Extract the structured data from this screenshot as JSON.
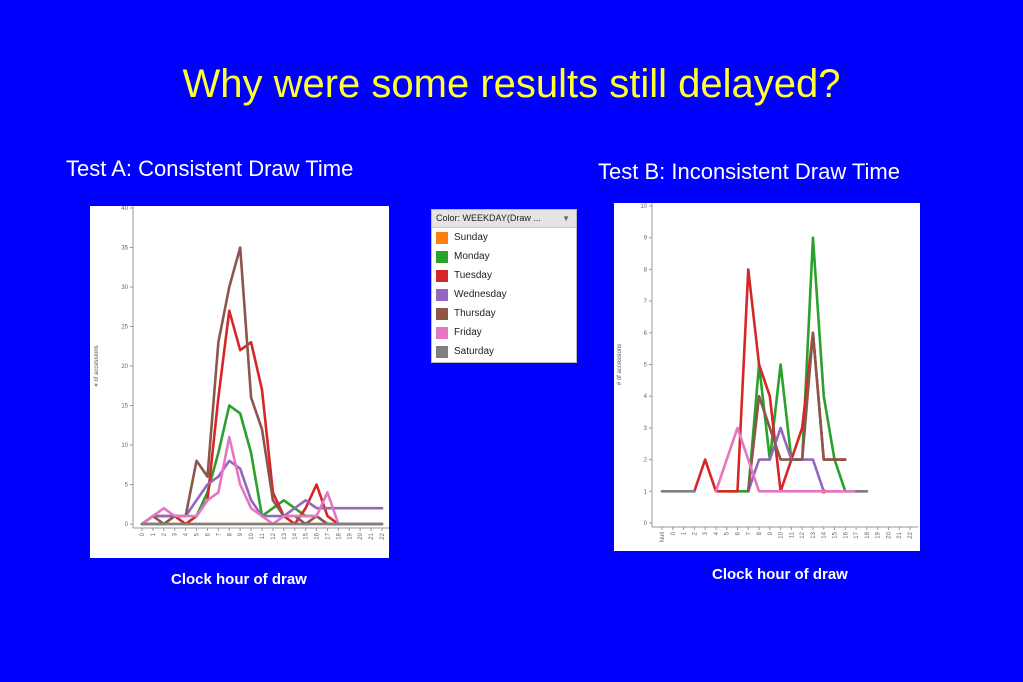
{
  "slide": {
    "title": "Why were some results still delayed?"
  },
  "chartA": {
    "heading": "Test A: Consistent Draw Time",
    "caption": "Clock hour of draw"
  },
  "chartB": {
    "heading": "Test B: Inconsistent Draw Time",
    "caption": "Clock hour of draw"
  },
  "legend": {
    "title": "Color: WEEKDAY(Draw ...",
    "items": [
      {
        "label": "Sunday",
        "color": "#FF7F0E"
      },
      {
        "label": "Monday",
        "color": "#2CA02C"
      },
      {
        "label": "Tuesday",
        "color": "#D62728"
      },
      {
        "label": "Wednesday",
        "color": "#9467BD"
      },
      {
        "label": "Thursday",
        "color": "#8C564B"
      },
      {
        "label": "Friday",
        "color": "#E377C2"
      },
      {
        "label": "Saturday",
        "color": "#7F7F7F"
      }
    ]
  },
  "chart_data": [
    {
      "type": "line",
      "title": "Test A: Consistent Draw Time",
      "xlabel": "Clock hour of draw",
      "ylabel": "# of accessions",
      "x": [
        0,
        1,
        2,
        3,
        4,
        5,
        6,
        7,
        8,
        9,
        10,
        11,
        12,
        13,
        14,
        15,
        16,
        17,
        18,
        19,
        20,
        21,
        22
      ],
      "x_tick_labels": [
        "0",
        "1",
        "2",
        "3",
        "4",
        "5",
        "6",
        "7",
        "8",
        "9",
        "10",
        "11",
        "12",
        "13",
        "14",
        "15",
        "16",
        "17",
        "18",
        "19",
        "20",
        "21",
        "22"
      ],
      "ylim": [
        0,
        40
      ],
      "y_ticks": [
        0,
        5,
        10,
        15,
        20,
        25,
        30,
        35,
        40
      ],
      "series": [
        {
          "name": "Sunday",
          "color": "#FF7F0E",
          "values": [
            0,
            0,
            0,
            0,
            0,
            0,
            0,
            0,
            0,
            0,
            0,
            0,
            0,
            0,
            0,
            0,
            0,
            0,
            0,
            0,
            0,
            0,
            0
          ]
        },
        {
          "name": "Monday",
          "color": "#2CA02C",
          "values": [
            0,
            0,
            0,
            1,
            0,
            1,
            4,
            9,
            15,
            14,
            9,
            1,
            2,
            3,
            2,
            1,
            1,
            0,
            0,
            0,
            0,
            0,
            0
          ]
        },
        {
          "name": "Tuesday",
          "color": "#D62728",
          "values": [
            0,
            1,
            1,
            1,
            0,
            1,
            3,
            16,
            27,
            22,
            23,
            17,
            4,
            1,
            0,
            2,
            5,
            1,
            0,
            0,
            0,
            0,
            0
          ]
        },
        {
          "name": "Wednesday",
          "color": "#9467BD",
          "values": [
            0,
            1,
            1,
            1,
            1,
            3,
            5,
            6,
            8,
            7,
            3,
            1,
            1,
            1,
            2,
            3,
            2,
            2,
            2,
            2,
            2,
            2,
            2
          ]
        },
        {
          "name": "Thursday",
          "color": "#8C564B",
          "values": [
            0,
            1,
            0,
            1,
            1,
            8,
            6,
            23,
            30,
            35,
            16,
            12,
            3,
            1,
            1,
            0,
            1,
            0,
            0,
            0,
            0,
            0,
            0
          ]
        },
        {
          "name": "Friday",
          "color": "#E377C2",
          "values": [
            0,
            1,
            2,
            1,
            1,
            1,
            3,
            4,
            11,
            5,
            2,
            1,
            0,
            1,
            1,
            1,
            1,
            4,
            0,
            0,
            0,
            0,
            0
          ]
        },
        {
          "name": "Saturday",
          "color": "#7F7F7F",
          "values": [
            0,
            0,
            0,
            0,
            0,
            0,
            0,
            0,
            0,
            0,
            0,
            0,
            0,
            0,
            0,
            0,
            0,
            0,
            0,
            0,
            0,
            0,
            0
          ]
        }
      ]
    },
    {
      "type": "line",
      "title": "Test B: Inconsistent Draw Time",
      "xlabel": "Clock hour of draw",
      "ylabel": "# of accessions",
      "x": [
        "Null",
        "0",
        "1",
        "2",
        "3",
        "4",
        "5",
        "6",
        "7",
        "8",
        "9",
        "10",
        "11",
        "12",
        "13",
        "14",
        "15",
        "16",
        "17",
        "18",
        "19",
        "20",
        "21",
        "22"
      ],
      "x_tick_labels": [
        "Null",
        "0",
        "1",
        "2",
        "3",
        "4",
        "5",
        "6",
        "7",
        "8",
        "9",
        "10",
        "11",
        "12",
        "13",
        "14",
        "15",
        "16",
        "17",
        "18",
        "19",
        "20",
        "21",
        "22"
      ],
      "ylim": [
        0,
        10
      ],
      "y_ticks": [
        0,
        1,
        2,
        3,
        4,
        5,
        6,
        7,
        8,
        9,
        10
      ],
      "series": [
        {
          "name": "Sunday",
          "color": "#FF7F0E",
          "values": [
            null,
            null,
            null,
            null,
            null,
            null,
            null,
            null,
            null,
            null,
            null,
            null,
            null,
            null,
            null,
            1,
            null,
            null,
            null,
            null,
            null,
            null,
            null,
            null
          ]
        },
        {
          "name": "Monday",
          "color": "#2CA02C",
          "values": [
            null,
            null,
            null,
            null,
            null,
            null,
            1,
            1,
            1,
            5,
            2,
            5,
            2,
            2,
            9,
            4,
            2,
            1,
            1,
            null,
            null,
            null,
            null,
            null
          ]
        },
        {
          "name": "Tuesday",
          "color": "#D62728",
          "values": [
            null,
            null,
            null,
            1,
            2,
            1,
            1,
            1,
            8,
            5,
            4,
            1,
            2,
            3,
            6,
            2,
            2,
            2,
            null,
            null,
            null,
            null,
            null,
            null
          ]
        },
        {
          "name": "Wednesday",
          "color": "#9467BD",
          "values": [
            null,
            null,
            null,
            null,
            null,
            null,
            null,
            null,
            1,
            2,
            2,
            3,
            2,
            2,
            2,
            1,
            1,
            1,
            null,
            null,
            null,
            null,
            null,
            null
          ]
        },
        {
          "name": "Thursday",
          "color": "#8C564B",
          "values": [
            null,
            null,
            null,
            null,
            null,
            null,
            null,
            null,
            1,
            4,
            3,
            2,
            2,
            2,
            6,
            2,
            2,
            2,
            null,
            null,
            null,
            null,
            null,
            null
          ]
        },
        {
          "name": "Friday",
          "color": "#E377C2",
          "values": [
            null,
            null,
            null,
            null,
            null,
            1,
            2,
            3,
            2,
            1,
            1,
            1,
            1,
            1,
            1,
            1,
            1,
            1,
            1,
            1,
            null,
            null,
            null,
            null
          ]
        },
        {
          "name": "Saturday",
          "color": "#7F7F7F",
          "values": [
            1,
            1,
            1,
            1,
            null,
            null,
            null,
            null,
            null,
            null,
            null,
            null,
            null,
            null,
            null,
            null,
            null,
            null,
            1,
            1,
            null,
            null,
            null,
            null
          ]
        }
      ]
    }
  ]
}
